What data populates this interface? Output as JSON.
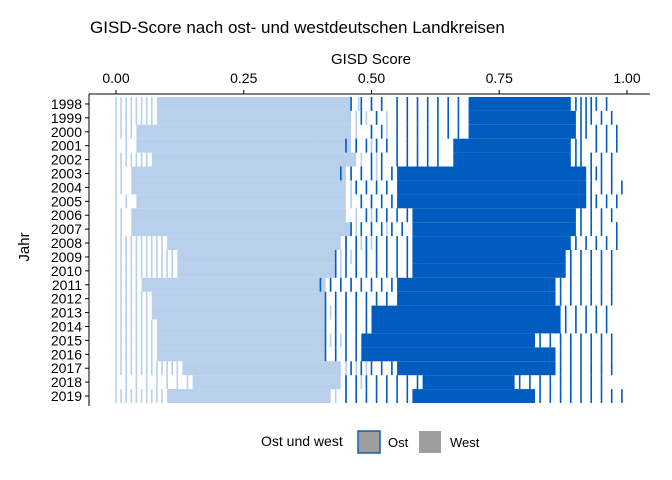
{
  "chart_data": {
    "type": "heatmap",
    "title": "GISD-Score nach ost- und westdeutschen Landkreisen",
    "xlabel": "GISD Score",
    "ylabel": "Jahr",
    "x_axis_position": "top",
    "xlim": [
      0,
      1
    ],
    "x_ticks": [
      0.0,
      0.25,
      0.5,
      0.75,
      1.0
    ],
    "x_tick_labels": [
      "0.00",
      "0.25",
      "0.50",
      "0.75",
      "1.00"
    ],
    "categories": [
      "1998",
      "1999",
      "2000",
      "2001",
      "2002",
      "2003",
      "2004",
      "2005",
      "2006",
      "2007",
      "2008",
      "2009",
      "2010",
      "2011",
      "2012",
      "2013",
      "2014",
      "2015",
      "2016",
      "2017",
      "2018",
      "2019"
    ],
    "grid": false,
    "legend": {
      "title": "Ost und west",
      "placement": "bottom",
      "entries": [
        {
          "label": "Ost",
          "color": "#1a5ea8"
        },
        {
          "label": "West",
          "color": "#9e9e9e"
        }
      ]
    },
    "colors": {
      "ost_mark": "#005cbf",
      "west_mark": "#b8d0ec",
      "ost_legend_key": "#9e9e9e",
      "ost_legend_border": "#1a5ea8",
      "west_legend_key": "#9e9e9e"
    },
    "series": [
      {
        "name": "West",
        "bands": [
          {
            "year": "1998",
            "core": [
              0.08,
              0.46
            ],
            "outliers": [
              0.0,
              0.01,
              0.02,
              0.03,
              0.04,
              0.05,
              0.06,
              0.07,
              0.475,
              0.5,
              0.52
            ]
          },
          {
            "year": "1999",
            "core": [
              0.08,
              0.46
            ],
            "outliers": [
              0.0,
              0.01,
              0.02,
              0.03,
              0.04,
              0.05,
              0.06,
              0.07,
              0.47,
              0.49,
              0.51,
              0.53
            ]
          },
          {
            "year": "2000",
            "core": [
              0.04,
              0.46
            ],
            "outliers": [
              0.0,
              0.01,
              0.02,
              0.03,
              0.47,
              0.5,
              0.53
            ]
          },
          {
            "year": "2001",
            "core": [
              0.04,
              0.46
            ],
            "outliers": [
              0.0,
              0.02,
              0.39,
              0.47,
              0.5
            ]
          },
          {
            "year": "2002",
            "core": [
              0.07,
              0.47
            ],
            "outliers": [
              0.0,
              0.01,
              0.02,
              0.03,
              0.04,
              0.05,
              0.06,
              0.48,
              0.51
            ]
          },
          {
            "year": "2003",
            "core": [
              0.03,
              0.45
            ],
            "outliers": [
              0.0,
              0.01,
              0.46,
              0.48,
              0.51
            ]
          },
          {
            "year": "2004",
            "core": [
              0.03,
              0.45
            ],
            "outliers": [
              0.0,
              0.01,
              0.46,
              0.49
            ]
          },
          {
            "year": "2005",
            "core": [
              0.04,
              0.45
            ],
            "outliers": [
              0.0,
              0.02,
              0.46,
              0.48,
              0.5
            ]
          },
          {
            "year": "2006",
            "core": [
              0.03,
              0.45
            ],
            "outliers": [
              0.0,
              0.01,
              0.44,
              0.47,
              0.5
            ]
          },
          {
            "year": "2007",
            "core": [
              0.03,
              0.46
            ],
            "outliers": [
              0.0,
              0.01,
              0.47,
              0.5,
              0.53
            ]
          },
          {
            "year": "2008",
            "core": [
              0.1,
              0.44
            ],
            "outliers": [
              0.0,
              0.01,
              0.02,
              0.03,
              0.04,
              0.05,
              0.06,
              0.07,
              0.08,
              0.09,
              0.45,
              0.48,
              0.5
            ]
          },
          {
            "year": "2009",
            "core": [
              0.12,
              0.43
            ],
            "outliers": [
              0.0,
              0.01,
              0.02,
              0.03,
              0.04,
              0.05,
              0.06,
              0.07,
              0.08,
              0.09,
              0.1,
              0.11,
              0.44,
              0.46,
              0.49
            ]
          },
          {
            "year": "2010",
            "core": [
              0.12,
              0.43
            ],
            "outliers": [
              0.0,
              0.01,
              0.02,
              0.03,
              0.04,
              0.05,
              0.06,
              0.07,
              0.08,
              0.09,
              0.1,
              0.11,
              0.44,
              0.47
            ]
          },
          {
            "year": "2011",
            "core": [
              0.05,
              0.41
            ],
            "outliers": [
              0.0,
              0.01,
              0.02,
              0.03,
              0.04,
              0.4,
              0.42,
              0.44,
              0.46
            ]
          },
          {
            "year": "2012",
            "core": [
              0.07,
              0.41
            ],
            "outliers": [
              0.0,
              0.01,
              0.02,
              0.03,
              0.04,
              0.05,
              0.06,
              0.4,
              0.43,
              0.45
            ]
          },
          {
            "year": "2013",
            "core": [
              0.07,
              0.41
            ],
            "outliers": [
              0.0,
              0.01,
              0.02,
              0.03,
              0.04,
              0.05,
              0.06,
              0.4,
              0.42,
              0.45
            ]
          },
          {
            "year": "2014",
            "core": [
              0.08,
              0.41
            ],
            "outliers": [
              0.0,
              0.01,
              0.02,
              0.03,
              0.04,
              0.05,
              0.06,
              0.07,
              0.4,
              0.43
            ]
          },
          {
            "year": "2015",
            "core": [
              0.08,
              0.41
            ],
            "outliers": [
              0.0,
              0.01,
              0.02,
              0.03,
              0.04,
              0.05,
              0.06,
              0.07,
              0.4,
              0.42,
              0.44
            ]
          },
          {
            "year": "2016",
            "core": [
              0.08,
              0.41
            ],
            "outliers": [
              0.0,
              0.01,
              0.02,
              0.03,
              0.04,
              0.05,
              0.06,
              0.07,
              0.4,
              0.43
            ]
          },
          {
            "year": "2017",
            "core": [
              0.13,
              0.44
            ],
            "outliers": [
              0.0,
              0.01,
              0.02,
              0.03,
              0.04,
              0.05,
              0.06,
              0.07,
              0.08,
              0.09,
              0.1,
              0.11,
              0.12,
              0.45,
              0.47,
              0.49
            ]
          },
          {
            "year": "2018",
            "core": [
              0.15,
              0.44
            ],
            "outliers": [
              0.0,
              0.02,
              0.04,
              0.06,
              0.08,
              0.1,
              0.12,
              0.14,
              0.33,
              0.36,
              0.38,
              0.4,
              0.45,
              0.48
            ]
          },
          {
            "year": "2019",
            "core": [
              0.1,
              0.42
            ],
            "outliers": [
              0.0,
              0.01,
              0.02,
              0.03,
              0.04,
              0.05,
              0.06,
              0.07,
              0.08,
              0.09,
              0.43,
              0.45
            ]
          }
        ]
      },
      {
        "name": "Ost",
        "bands": [
          {
            "year": "1998",
            "core": [
              0.69,
              0.89
            ],
            "outliers": [
              0.46,
              0.48,
              0.5,
              0.52,
              0.55,
              0.57,
              0.59,
              0.61,
              0.63,
              0.65,
              0.67,
              0.9,
              0.91,
              0.92,
              0.93,
              0.94,
              0.96
            ]
          },
          {
            "year": "1999",
            "core": [
              0.69,
              0.9
            ],
            "outliers": [
              0.48,
              0.51,
              0.55,
              0.57,
              0.59,
              0.61,
              0.63,
              0.65,
              0.67,
              0.91,
              0.92,
              0.93,
              0.95,
              0.97
            ]
          },
          {
            "year": "2000",
            "core": [
              0.69,
              0.9
            ],
            "outliers": [
              0.5,
              0.52,
              0.55,
              0.57,
              0.59,
              0.61,
              0.63,
              0.65,
              0.67,
              0.91,
              0.92,
              0.94,
              0.96,
              0.98
            ]
          },
          {
            "year": "2001",
            "core": [
              0.66,
              0.89
            ],
            "outliers": [
              0.45,
              0.47,
              0.49,
              0.51,
              0.53,
              0.55,
              0.57,
              0.59,
              0.61,
              0.63,
              0.9,
              0.91,
              0.94,
              0.96,
              0.98
            ]
          },
          {
            "year": "2002",
            "core": [
              0.66,
              0.89
            ],
            "outliers": [
              0.5,
              0.52,
              0.55,
              0.57,
              0.59,
              0.61,
              0.63,
              0.9,
              0.91,
              0.93,
              0.95,
              0.97
            ]
          },
          {
            "year": "2003",
            "core": [
              0.55,
              0.92
            ],
            "outliers": [
              0.44,
              0.46,
              0.48,
              0.5,
              0.52,
              0.54,
              0.93,
              0.94,
              0.95,
              0.97
            ]
          },
          {
            "year": "2004",
            "core": [
              0.55,
              0.92
            ],
            "outliers": [
              0.47,
              0.49,
              0.51,
              0.53,
              0.93,
              0.95,
              0.97,
              0.99
            ]
          },
          {
            "year": "2005",
            "core": [
              0.55,
              0.92
            ],
            "outliers": [
              0.48,
              0.5,
              0.52,
              0.54,
              0.93,
              0.94,
              0.96,
              0.98
            ]
          },
          {
            "year": "2006",
            "core": [
              0.58,
              0.9
            ],
            "outliers": [
              0.49,
              0.51,
              0.53,
              0.55,
              0.57,
              0.91,
              0.93,
              0.95,
              0.97
            ]
          },
          {
            "year": "2007",
            "core": [
              0.58,
              0.9
            ],
            "outliers": [
              0.46,
              0.48,
              0.5,
              0.52,
              0.54,
              0.56,
              0.91,
              0.93,
              0.95,
              0.98
            ]
          },
          {
            "year": "2008",
            "core": [
              0.58,
              0.89
            ],
            "outliers": [
              0.45,
              0.47,
              0.49,
              0.51,
              0.53,
              0.55,
              0.57,
              0.9,
              0.92,
              0.94,
              0.96,
              0.98
            ]
          },
          {
            "year": "2009",
            "core": [
              0.58,
              0.88
            ],
            "outliers": [
              0.43,
              0.45,
              0.47,
              0.49,
              0.51,
              0.53,
              0.55,
              0.57,
              0.89,
              0.91,
              0.93,
              0.95,
              0.97
            ]
          },
          {
            "year": "2010",
            "core": [
              0.58,
              0.88
            ],
            "outliers": [
              0.43,
              0.45,
              0.47,
              0.49,
              0.51,
              0.53,
              0.55,
              0.57,
              0.89,
              0.91,
              0.93,
              0.95,
              0.97
            ]
          },
          {
            "year": "2011",
            "core": [
              0.55,
              0.86
            ],
            "outliers": [
              0.4,
              0.42,
              0.44,
              0.46,
              0.48,
              0.5,
              0.52,
              0.54,
              0.87,
              0.89,
              0.91,
              0.93,
              0.95,
              0.97
            ]
          },
          {
            "year": "2012",
            "core": [
              0.55,
              0.86
            ],
            "outliers": [
              0.41,
              0.43,
              0.45,
              0.47,
              0.49,
              0.51,
              0.53,
              0.87,
              0.89,
              0.91,
              0.93,
              0.95,
              0.97
            ]
          },
          {
            "year": "2013",
            "core": [
              0.5,
              0.87
            ],
            "outliers": [
              0.41,
              0.43,
              0.45,
              0.47,
              0.49,
              0.88,
              0.9,
              0.92,
              0.94,
              0.96
            ]
          },
          {
            "year": "2014",
            "core": [
              0.5,
              0.87
            ],
            "outliers": [
              0.41,
              0.43,
              0.45,
              0.47,
              0.49,
              0.88,
              0.9,
              0.92,
              0.94,
              0.96
            ]
          },
          {
            "year": "2015",
            "core": [
              0.48,
              0.82
            ],
            "outliers": [
              0.41,
              0.43,
              0.45,
              0.47,
              0.83,
              0.85,
              0.87,
              0.89,
              0.91,
              0.93,
              0.95,
              0.97
            ]
          },
          {
            "year": "2016",
            "core": [
              0.48,
              0.86
            ],
            "outliers": [
              0.41,
              0.43,
              0.45,
              0.47,
              0.87,
              0.89,
              0.91,
              0.93,
              0.95,
              0.97
            ]
          },
          {
            "year": "2017",
            "core": [
              0.55,
              0.86
            ],
            "outliers": [
              0.46,
              0.48,
              0.5,
              0.52,
              0.54,
              0.87,
              0.89,
              0.91,
              0.93,
              0.95,
              0.97
            ]
          },
          {
            "year": "2018",
            "core": [
              0.6,
              0.78
            ],
            "outliers": [
              0.45,
              0.47,
              0.49,
              0.51,
              0.53,
              0.55,
              0.57,
              0.59,
              0.79,
              0.81,
              0.83,
              0.85,
              0.87,
              0.89,
              0.91,
              0.93,
              0.95
            ]
          },
          {
            "year": "2019",
            "core": [
              0.58,
              0.82
            ],
            "outliers": [
              0.45,
              0.47,
              0.49,
              0.51,
              0.53,
              0.55,
              0.57,
              0.83,
              0.85,
              0.87,
              0.89,
              0.91,
              0.93,
              0.95,
              0.97,
              0.99
            ]
          }
        ]
      }
    ]
  }
}
